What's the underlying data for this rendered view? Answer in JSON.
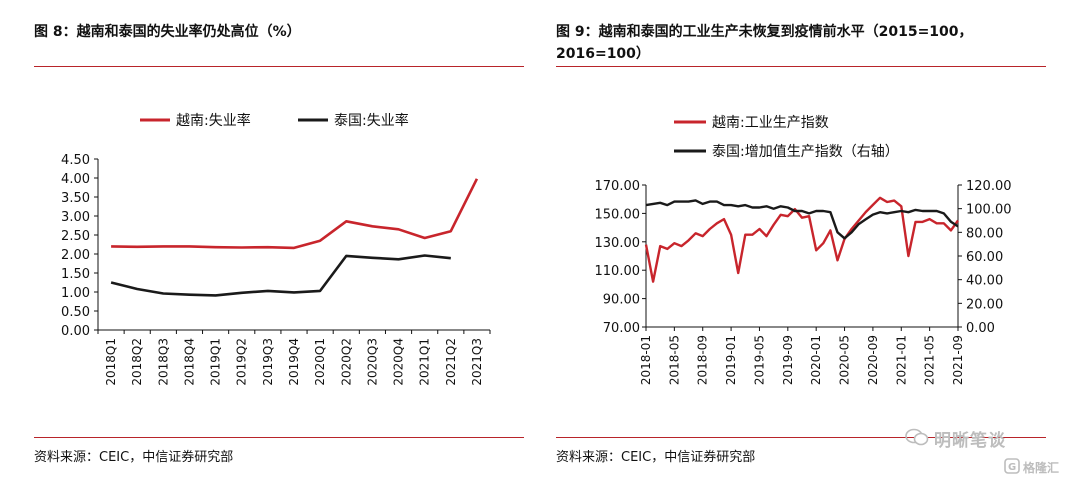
{
  "left": {
    "title": "图 8：越南和泰国的失业率仍处高位（%）",
    "source": "资料来源：CEIC，中信证券研究部"
  },
  "right": {
    "title_line1": "图 9：越南和泰国的工业生产未恢复到疫情前水平（2015=100，",
    "title_line2": "2016=100）",
    "source": "资料来源：CEIC，中信证券研究部"
  },
  "watermark": {
    "main": "明晰笔谈",
    "sub": "格隆汇"
  },
  "colors": {
    "vietnam": "#c8252c",
    "thailand": "#1a1a1a",
    "rule": "#b8242a"
  },
  "chart_data": [
    {
      "type": "line",
      "categories": [
        "2018Q1",
        "2018Q2",
        "2018Q3",
        "2018Q4",
        "2019Q1",
        "2019Q2",
        "2019Q3",
        "2019Q4",
        "2020Q1",
        "2020Q2",
        "2020Q3",
        "2020Q4",
        "2021Q1",
        "2021Q2",
        "2021Q3"
      ],
      "series": [
        {
          "name": "越南:失业率",
          "values": [
            2.2,
            2.19,
            2.2,
            2.2,
            2.18,
            2.17,
            2.18,
            2.16,
            2.35,
            2.86,
            2.73,
            2.65,
            2.42,
            2.6,
            3.98
          ]
        },
        {
          "name": "泰国:失业率",
          "values": [
            1.25,
            1.08,
            0.96,
            0.93,
            0.91,
            0.98,
            1.03,
            0.99,
            1.03,
            1.95,
            1.9,
            1.86,
            1.96,
            1.89,
            null
          ]
        }
      ],
      "yticks": [
        "0.00",
        "0.50",
        "1.00",
        "1.50",
        "2.00",
        "2.50",
        "3.00",
        "3.50",
        "4.00",
        "4.50"
      ],
      "ylim": [
        0,
        4.5
      ],
      "legend": "top",
      "grid": false
    },
    {
      "type": "line",
      "x_start": "2018-01",
      "xticks": [
        "2018-01",
        "2018-05",
        "2018-09",
        "2019-01",
        "2019-05",
        "2019-09",
        "2020-01",
        "2020-05",
        "2020-09",
        "2021-01",
        "2021-05",
        "2021-09"
      ],
      "series": [
        {
          "name": "越南:工业生产指数",
          "axis": "left",
          "values": [
            128,
            102,
            127,
            125,
            129,
            127,
            131,
            136,
            134,
            139,
            143,
            146,
            135,
            108,
            135,
            135,
            139,
            134,
            142,
            149,
            148,
            153,
            147,
            148,
            124,
            129,
            138,
            117,
            132,
            139,
            145,
            151,
            156,
            161,
            158,
            159,
            155,
            120,
            144,
            144,
            146,
            143,
            143,
            138,
            145
          ]
        },
        {
          "name": "泰国:增加值生产指数（右轴）",
          "axis": "right",
          "values": [
            103,
            104,
            105,
            103,
            106,
            106,
            106,
            107,
            104,
            106,
            106,
            103,
            103,
            102,
            103,
            101,
            101,
            102,
            100,
            102,
            101,
            98,
            98,
            96,
            98,
            98,
            97,
            80,
            75,
            80,
            87,
            91,
            95,
            97,
            96,
            97,
            98,
            97,
            99,
            98,
            98,
            98,
            96,
            89,
            85
          ]
        }
      ],
      "yticks_left": [
        "70.00",
        "90.00",
        "110.00",
        "130.00",
        "150.00",
        "170.00"
      ],
      "ylim_left": [
        70,
        170
      ],
      "yticks_right": [
        "0.00",
        "20.00",
        "40.00",
        "60.00",
        "80.00",
        "100.00",
        "120.00"
      ],
      "ylim_right": [
        0,
        120
      ],
      "legend": "top-left",
      "grid": false
    }
  ]
}
